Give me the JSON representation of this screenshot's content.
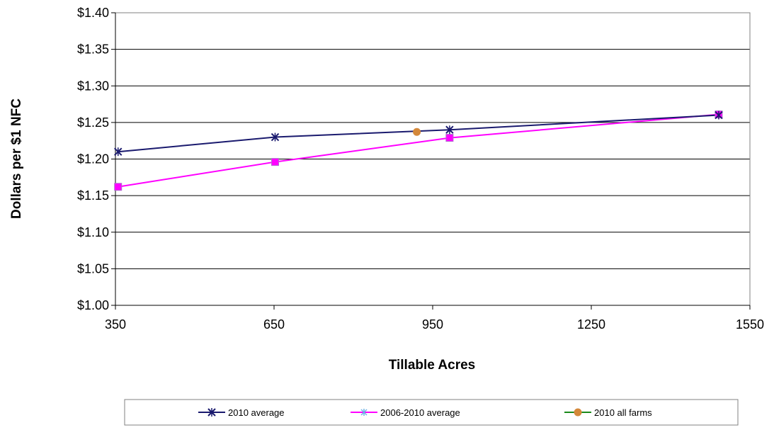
{
  "chart_data": {
    "type": "line",
    "xlabel": "Tillable Acres",
    "ylabel": "Dollars per $1 NFC",
    "xlim": [
      350,
      1550
    ],
    "ylim": [
      1.0,
      1.4
    ],
    "x_ticks": [
      "350",
      "650",
      "950",
      "1250",
      "1550"
    ],
    "y_ticks": [
      "$1.00",
      "$1.05",
      "$1.10",
      "$1.15",
      "$1.20",
      "$1.25",
      "$1.30",
      "$1.35",
      "$1.40"
    ],
    "grid": "horizontal",
    "legend_position": "bottom",
    "series": [
      {
        "name": "2010 average",
        "color": "#1a1a6e",
        "marker": "x-star",
        "points": [
          [
            355,
            1.21
          ],
          [
            652,
            1.23
          ],
          [
            982,
            1.24
          ],
          [
            1491,
            1.26
          ]
        ]
      },
      {
        "name": "2006-2010 average",
        "color": "#ff00ff",
        "marker": "square",
        "points": [
          [
            355,
            1.162
          ],
          [
            652,
            1.196
          ],
          [
            982,
            1.229
          ],
          [
            1491,
            1.261
          ]
        ]
      },
      {
        "name": "2010 all farms",
        "color": "#d4883a",
        "legend_line_color": "#1a8a1a",
        "marker": "circle",
        "points": [
          [
            920,
            1.237
          ]
        ]
      }
    ]
  }
}
